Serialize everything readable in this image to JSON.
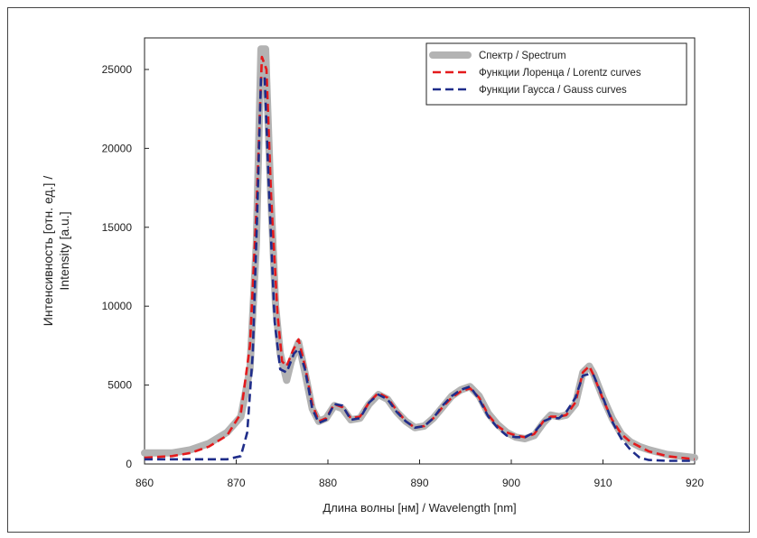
{
  "chart_data": {
    "type": "line",
    "xlabel": "Длина волны [нм] / Wavelength [nm]",
    "ylabel_line1": "Интенсивность [отн. ед.] /",
    "ylabel_line2": "Intensity [a.u.]",
    "xlim": [
      860,
      920
    ],
    "ylim": [
      0,
      27000
    ],
    "x_ticks": [
      860,
      870,
      880,
      890,
      900,
      910,
      920
    ],
    "y_ticks": [
      0,
      5000,
      10000,
      15000,
      20000,
      25000
    ],
    "grid": false,
    "legend_position": "top-right",
    "series": [
      {
        "name": "Спектр / Spectrum",
        "color": "#b3b3b3",
        "style": "solid-thick",
        "points": [
          [
            860,
            700
          ],
          [
            863,
            700
          ],
          [
            865,
            900
          ],
          [
            867,
            1300
          ],
          [
            869,
            2000
          ],
          [
            870.5,
            3000
          ],
          [
            871.5,
            6000
          ],
          [
            872.2,
            14000
          ],
          [
            872.7,
            26300
          ],
          [
            873.2,
            26300
          ],
          [
            873.7,
            18000
          ],
          [
            874.3,
            10000
          ],
          [
            874.8,
            7000
          ],
          [
            875.5,
            5300
          ],
          [
            876,
            6500
          ],
          [
            876.8,
            7700
          ],
          [
            877.5,
            5800
          ],
          [
            878.3,
            3500
          ],
          [
            879,
            2700
          ],
          [
            879.8,
            2900
          ],
          [
            880.7,
            3700
          ],
          [
            881.6,
            3500
          ],
          [
            882.5,
            2800
          ],
          [
            883.5,
            2900
          ],
          [
            884.5,
            3800
          ],
          [
            885.5,
            4400
          ],
          [
            886.5,
            4100
          ],
          [
            887.5,
            3300
          ],
          [
            888.5,
            2700
          ],
          [
            889.5,
            2300
          ],
          [
            890.5,
            2400
          ],
          [
            891.5,
            2900
          ],
          [
            892.5,
            3600
          ],
          [
            893.5,
            4300
          ],
          [
            894.5,
            4700
          ],
          [
            895.5,
            4900
          ],
          [
            896.5,
            4300
          ],
          [
            897.5,
            3200
          ],
          [
            898.5,
            2500
          ],
          [
            899.5,
            2000
          ],
          [
            900.5,
            1700
          ],
          [
            901.5,
            1600
          ],
          [
            902.5,
            1800
          ],
          [
            903.5,
            2600
          ],
          [
            904.3,
            3100
          ],
          [
            905.2,
            3000
          ],
          [
            906,
            3100
          ],
          [
            907,
            3800
          ],
          [
            907.8,
            5800
          ],
          [
            908.5,
            6200
          ],
          [
            909,
            5700
          ],
          [
            910,
            4200
          ],
          [
            911,
            2900
          ],
          [
            912,
            1900
          ],
          [
            913,
            1400
          ],
          [
            914,
            1100
          ],
          [
            915,
            900
          ],
          [
            917,
            600
          ],
          [
            920,
            400
          ]
        ]
      },
      {
        "name": "Функции Лоренца / Lorentz curves",
        "color": "#e41a1c",
        "style": "dashed",
        "points": [
          [
            860,
            400
          ],
          [
            863,
            500
          ],
          [
            865,
            700
          ],
          [
            867,
            1100
          ],
          [
            869,
            1800
          ],
          [
            870.5,
            3200
          ],
          [
            871.5,
            7500
          ],
          [
            872.2,
            16000
          ],
          [
            872.8,
            25800
          ],
          [
            873.3,
            25000
          ],
          [
            873.8,
            17000
          ],
          [
            874.5,
            9500
          ],
          [
            875,
            6500
          ],
          [
            875.5,
            6200
          ],
          [
            876.2,
            7200
          ],
          [
            876.8,
            7900
          ],
          [
            877.5,
            6200
          ],
          [
            878.3,
            3800
          ],
          [
            879,
            2700
          ],
          [
            879.8,
            2900
          ],
          [
            880.7,
            3800
          ],
          [
            881.6,
            3600
          ],
          [
            882.5,
            2900
          ],
          [
            883.5,
            3000
          ],
          [
            884.5,
            3900
          ],
          [
            885.5,
            4500
          ],
          [
            886.5,
            4200
          ],
          [
            887.5,
            3400
          ],
          [
            888.5,
            2700
          ],
          [
            889.5,
            2300
          ],
          [
            890.5,
            2400
          ],
          [
            891.5,
            2900
          ],
          [
            892.5,
            3600
          ],
          [
            893.5,
            4200
          ],
          [
            894.5,
            4600
          ],
          [
            895.5,
            4800
          ],
          [
            896.5,
            4200
          ],
          [
            897.5,
            3100
          ],
          [
            898.5,
            2400
          ],
          [
            899.5,
            2000
          ],
          [
            900.5,
            1800
          ],
          [
            901.5,
            1700
          ],
          [
            902.5,
            1900
          ],
          [
            903.5,
            2700
          ],
          [
            904.3,
            3000
          ],
          [
            905.2,
            3000
          ],
          [
            906,
            3100
          ],
          [
            907,
            3900
          ],
          [
            907.8,
            5800
          ],
          [
            908.5,
            6200
          ],
          [
            909,
            5600
          ],
          [
            910,
            4100
          ],
          [
            911,
            2800
          ],
          [
            912,
            1900
          ],
          [
            913,
            1400
          ],
          [
            914,
            1100
          ],
          [
            915,
            800
          ],
          [
            917,
            500
          ],
          [
            920,
            300
          ]
        ]
      },
      {
        "name": "Функции Гаусса / Gauss curves",
        "color": "#1f2d8a",
        "style": "dashed",
        "points": [
          [
            860,
            300
          ],
          [
            865,
            300
          ],
          [
            869,
            300
          ],
          [
            870.5,
            500
          ],
          [
            871.2,
            2000
          ],
          [
            871.8,
            7000
          ],
          [
            872.3,
            16000
          ],
          [
            872.7,
            24500
          ],
          [
            873.1,
            24500
          ],
          [
            873.6,
            17000
          ],
          [
            874.2,
            9000
          ],
          [
            874.8,
            6000
          ],
          [
            875.5,
            5800
          ],
          [
            876.3,
            7000
          ],
          [
            876.8,
            7300
          ],
          [
            877.5,
            6000
          ],
          [
            878.3,
            3500
          ],
          [
            879,
            2600
          ],
          [
            879.8,
            2800
          ],
          [
            880.7,
            3800
          ],
          [
            881.6,
            3700
          ],
          [
            882.5,
            2800
          ],
          [
            883.5,
            2900
          ],
          [
            884.5,
            3900
          ],
          [
            885.5,
            4400
          ],
          [
            886.5,
            4100
          ],
          [
            887.5,
            3300
          ],
          [
            888.5,
            2700
          ],
          [
            889.5,
            2300
          ],
          [
            890.5,
            2400
          ],
          [
            891.5,
            2900
          ],
          [
            892.5,
            3700
          ],
          [
            893.5,
            4300
          ],
          [
            894.5,
            4700
          ],
          [
            895.5,
            4900
          ],
          [
            896.5,
            4100
          ],
          [
            897.5,
            3000
          ],
          [
            898.5,
            2300
          ],
          [
            899.5,
            1800
          ],
          [
            900.5,
            1700
          ],
          [
            901.5,
            1700
          ],
          [
            902.5,
            2000
          ],
          [
            903.5,
            2700
          ],
          [
            904.3,
            2900
          ],
          [
            905.2,
            2900
          ],
          [
            906,
            3300
          ],
          [
            907,
            4200
          ],
          [
            907.8,
            5600
          ],
          [
            908.5,
            5700
          ],
          [
            909,
            5600
          ],
          [
            910,
            4200
          ],
          [
            911,
            2700
          ],
          [
            912,
            1600
          ],
          [
            913,
            900
          ],
          [
            914,
            400
          ],
          [
            915,
            250
          ],
          [
            917,
            200
          ],
          [
            920,
            200
          ]
        ]
      }
    ]
  }
}
